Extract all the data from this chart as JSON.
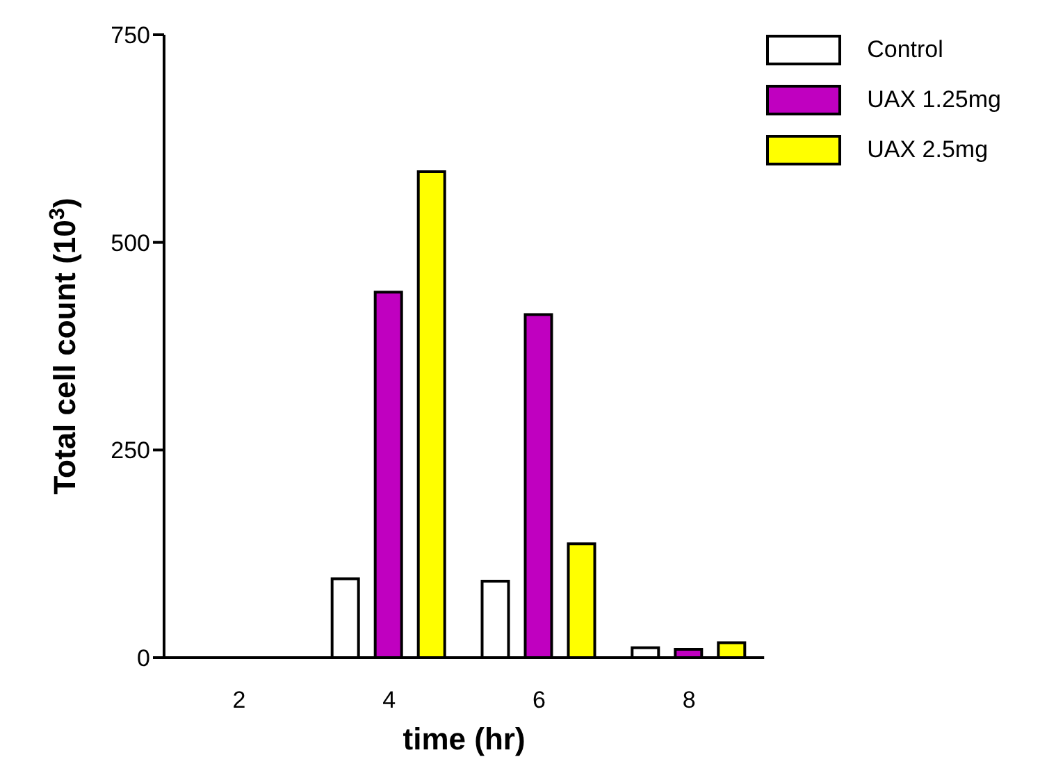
{
  "chart_data": {
    "type": "bar",
    "xlabel": "time (hr)",
    "ylabel": "Total cell count (10$^{3}$)",
    "categories": [
      "2",
      "4",
      "6",
      "8"
    ],
    "series": [
      {
        "name": "Control",
        "color": "#ffffff",
        "values": [
          null,
          95,
          92,
          12
        ]
      },
      {
        "name": "UAX 1.25mg",
        "color": "#c000c0",
        "values": [
          null,
          440,
          413,
          10
        ]
      },
      {
        "name": "UAX 2.5mg",
        "color": "#ffff00",
        "values": [
          null,
          585,
          137,
          18
        ]
      }
    ],
    "ylim": [
      0,
      750
    ],
    "yticks": [
      0,
      250,
      500,
      750
    ],
    "grid": false,
    "legend": "top right"
  }
}
